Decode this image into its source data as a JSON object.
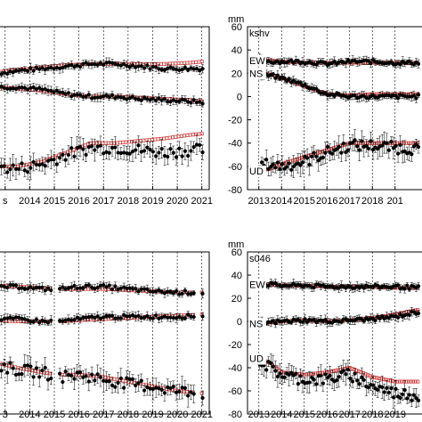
{
  "colors": {
    "observed": "#000000",
    "model": "#d23c3c",
    "axis": "#000000"
  },
  "chart_data": [
    {
      "type": "scatter",
      "panel": "top-left",
      "title": "",
      "xlabel": "",
      "ylabel": "",
      "unit": "",
      "station": "",
      "xlim": [
        2012.5,
        2021.3
      ],
      "ylim": [
        -80,
        60
      ],
      "x_ticks": [
        "2013",
        "2014",
        "2015",
        "2016",
        "2017",
        "2018",
        "2019",
        "2020",
        "2021"
      ],
      "x_tick_labels_shown": [
        "s",
        "2014",
        "2015",
        "2016",
        "2017",
        "2018",
        "2019",
        "2020",
        "2021"
      ],
      "y_ticks": [],
      "grid": "vertical dashed at each year",
      "components": [
        {
          "label": "",
          "observed": {
            "x": [
              2012.7,
              2013.5,
              2014.5,
              2015.5,
              2016.5,
              2017.5,
              2018.5,
              2019.5,
              2020.5,
              2021.0
            ],
            "y": [
              20,
              22,
              24,
              26,
              28,
              28,
              26,
              24,
              24,
              24
            ]
          },
          "model": {
            "x": [
              2012.7,
              2013.5,
              2014.5,
              2015.5,
              2016.5,
              2017.5,
              2018.5,
              2019.5,
              2020.5,
              2021.0
            ],
            "y": [
              21,
              23,
              25,
              27,
              28,
              28,
              28,
              28,
              29,
              30
            ]
          }
        },
        {
          "label": "",
          "observed": {
            "x": [
              2012.7,
              2013.5,
              2014.5,
              2015.5,
              2016.5,
              2017.5,
              2018.5,
              2019.5,
              2020.5,
              2021.0
            ],
            "y": [
              8,
              8,
              6,
              2,
              0,
              0,
              -2,
              -3,
              -4,
              -5
            ]
          },
          "model": {
            "x": [
              2012.7,
              2013.5,
              2014.5,
              2015.5,
              2016.5,
              2017.5,
              2018.5,
              2019.5,
              2020.5,
              2021.0
            ],
            "y": [
              8,
              7,
              5,
              2,
              0,
              0,
              -1,
              -2,
              -3,
              -4
            ]
          }
        },
        {
          "label": "",
          "observed": {
            "x": [
              2012.7,
              2013.5,
              2014.5,
              2015.5,
              2016.5,
              2017.5,
              2018.5,
              2019.5,
              2020.5,
              2021.0
            ],
            "y": [
              -60,
              -62,
              -58,
              -50,
              -44,
              -44,
              -46,
              -48,
              -46,
              -46
            ]
          },
          "model": {
            "x": [
              2012.7,
              2013.5,
              2014.5,
              2015.5,
              2016.5,
              2017.5,
              2018.5,
              2019.5,
              2020.5,
              2021.0
            ],
            "y": [
              -60,
              -60,
              -56,
              -48,
              -40,
              -40,
              -38,
              -36,
              -33,
              -32
            ]
          }
        }
      ]
    },
    {
      "type": "scatter",
      "panel": "top-right",
      "title": "",
      "xlabel": "",
      "ylabel": "",
      "unit": "mm",
      "station": "kshv",
      "xlim": [
        2012.5,
        2020.5
      ],
      "ylim": [
        -80,
        60
      ],
      "x_ticks": [
        "2013",
        "2014",
        "2015",
        "2016",
        "2017",
        "2018",
        "2019"
      ],
      "x_tick_labels_shown": [
        "2013",
        "2014",
        "2015",
        "2016",
        "2017",
        "2018",
        "201"
      ],
      "y_ticks": [
        60,
        40,
        20,
        0,
        -20,
        -40,
        -60,
        -80
      ],
      "grid": "vertical dashed at each year",
      "components": [
        {
          "label": "EW",
          "observed": {
            "x": [
              2013.0,
              2013.5,
              2014.0,
              2015.0,
              2016.0,
              2017.0,
              2018.0,
              2019.0,
              2020.0
            ],
            "y": [
              32,
              30,
              30,
              30,
              28,
              30,
              30,
              29,
              29
            ]
          },
          "model": {
            "x": [
              2013.0,
              2013.5,
              2014.0,
              2015.0,
              2016.0,
              2017.0,
              2018.0,
              2019.0,
              2020.0
            ],
            "y": [
              31,
              31,
              30,
              29,
              29,
              29,
              29,
              29,
              29
            ]
          }
        },
        {
          "label": "NS",
          "observed": {
            "x": [
              2013.0,
              2013.5,
              2014.0,
              2015.0,
              2016.0,
              2017.0,
              2018.0,
              2019.0,
              2020.0
            ],
            "y": [
              18,
              18,
              16,
              10,
              2,
              0,
              0,
              0,
              0
            ]
          },
          "model": {
            "x": [
              2013.0,
              2013.5,
              2014.0,
              2015.0,
              2016.0,
              2017.0,
              2018.0,
              2019.0,
              2020.0
            ],
            "y": [
              20,
              19,
              16,
              9,
              2,
              1,
              2,
              2,
              2
            ]
          }
        },
        {
          "label": "UD",
          "observed": {
            "x": [
              2013.0,
              2013.5,
              2014.0,
              2015.0,
              2016.0,
              2017.0,
              2018.0,
              2019.0,
              2020.0
            ],
            "y": [
              -60,
              -58,
              -60,
              -56,
              -48,
              -42,
              -42,
              -44,
              -45
            ]
          },
          "model": {
            "x": [
              2013.0,
              2013.5,
              2014.0,
              2015.0,
              2016.0,
              2017.0,
              2018.0,
              2019.0,
              2020.0
            ],
            "y": [
              -64,
              -62,
              -58,
              -52,
              -46,
              -40,
              -40,
              -40,
              -40
            ]
          }
        }
      ]
    },
    {
      "type": "scatter",
      "panel": "bottom-left",
      "title": "",
      "xlabel": "",
      "ylabel": "",
      "unit": "",
      "station": "",
      "xlim": [
        2012.5,
        2021.3
      ],
      "ylim": [
        -80,
        60
      ],
      "x_ticks": [
        "2013",
        "2014",
        "2015",
        "2016",
        "2017",
        "2018",
        "2019",
        "2020",
        "2021"
      ],
      "x_tick_labels_shown": [
        "3",
        "2014",
        "2015",
        "2016",
        "2017",
        "2018",
        "2019",
        "2020",
        "2021"
      ],
      "y_ticks": [],
      "grid": "vertical dashed at each year",
      "components": [
        {
          "label": "",
          "observed": {
            "x": [
              2012.7,
              2013.5,
              2014.5,
              2015.2,
              2016.0,
              2017.0,
              2018.0,
              2019.0,
              2020.0,
              2021.0
            ],
            "y": [
              30,
              30,
              28,
              28,
              30,
              30,
              28,
              26,
              25,
              25
            ]
          },
          "model": {
            "x": [
              2012.7,
              2013.5,
              2014.5,
              2015.2,
              2016.0,
              2017.0,
              2018.0,
              2019.0,
              2020.0,
              2021.0
            ],
            "y": [
              31,
              30,
              29,
              28,
              28,
              28,
              27,
              26,
              25,
              25
            ]
          }
        },
        {
          "label": "",
          "observed": {
            "x": [
              2012.7,
              2013.5,
              2014.5,
              2015.2,
              2016.0,
              2017.0,
              2018.0,
              2019.0,
              2020.0,
              2021.0
            ],
            "y": [
              2,
              2,
              0,
              0,
              2,
              4,
              4,
              4,
              4,
              5
            ]
          },
          "model": {
            "x": [
              2012.7,
              2013.5,
              2014.5,
              2015.2,
              2016.0,
              2017.0,
              2018.0,
              2019.0,
              2020.0,
              2021.0
            ],
            "y": [
              1,
              0,
              0,
              0,
              1,
              2,
              3,
              4,
              5,
              6
            ]
          }
        },
        {
          "label": "",
          "observed": {
            "x": [
              2012.7,
              2013.5,
              2014.5,
              2015.2,
              2016.0,
              2017.0,
              2018.0,
              2019.0,
              2020.0,
              2021.0
            ],
            "y": [
              -38,
              -42,
              -44,
              -48,
              -46,
              -50,
              -54,
              -56,
              -60,
              -62
            ]
          },
          "model": {
            "x": [
              2012.7,
              2013.5,
              2014.5,
              2015.2,
              2016.0,
              2017.0,
              2018.0,
              2019.0,
              2020.0,
              2021.0
            ],
            "y": [
              -36,
              -40,
              -44,
              -46,
              -46,
              -48,
              -52,
              -56,
              -60,
              -62
            ]
          }
        }
      ]
    },
    {
      "type": "scatter",
      "panel": "bottom-right",
      "title": "",
      "xlabel": "",
      "ylabel": "",
      "unit": "mm",
      "station": "s046",
      "xlim": [
        2012.5,
        2020.5
      ],
      "ylim": [
        -80,
        60
      ],
      "x_ticks": [
        "2013",
        "2014",
        "2015",
        "2016",
        "2017",
        "2018",
        "2019"
      ],
      "x_tick_labels_shown": [
        "2013",
        "2014",
        "2015",
        "2016",
        "2017",
        "2018",
        "2019"
      ],
      "y_ticks": [
        60,
        40,
        20,
        0,
        -20,
        -40,
        -60,
        -80
      ],
      "grid": "vertical dashed at each year",
      "components": [
        {
          "label": "EW",
          "observed": {
            "x": [
              2013.0,
              2013.5,
              2014.0,
              2015.0,
              2016.0,
              2017.0,
              2018.0,
              2019.0,
              2020.0
            ],
            "y": [
              32,
              32,
              31,
              31,
              30,
              30,
              30,
              30,
              29
            ]
          },
          "model": {
            "x": [
              2013.0,
              2013.5,
              2014.0,
              2015.0,
              2016.0,
              2017.0,
              2018.0,
              2019.0,
              2020.0
            ],
            "y": [
              32,
              32,
              31,
              31,
              30,
              30,
              30,
              29,
              29
            ]
          }
        },
        {
          "label": "NS",
          "observed": {
            "x": [
              2013.0,
              2013.5,
              2014.0,
              2015.0,
              2016.0,
              2017.0,
              2018.0,
              2019.0,
              2020.0
            ],
            "y": [
              -2,
              -1,
              0,
              1,
              0,
              1,
              2,
              4,
              8
            ]
          },
          "model": {
            "x": [
              2013.0,
              2013.5,
              2014.0,
              2015.0,
              2016.0,
              2017.0,
              2018.0,
              2019.0,
              2020.0
            ],
            "y": [
              -2,
              -1,
              0,
              1,
              0,
              1,
              3,
              6,
              10
            ]
          }
        },
        {
          "label": "UD",
          "observed": {
            "x": [
              2013.0,
              2013.5,
              2014.0,
              2015.0,
              2016.0,
              2017.0,
              2018.0,
              2019.0,
              2020.0
            ],
            "y": [
              -34,
              -40,
              -46,
              -50,
              -50,
              -46,
              -56,
              -62,
              -64
            ]
          },
          "model": {
            "x": [
              2013.0,
              2013.5,
              2014.0,
              2015.0,
              2016.0,
              2017.0,
              2018.0,
              2019.0,
              2020.0
            ],
            "y": [
              -32,
              -36,
              -44,
              -46,
              -44,
              -40,
              -48,
              -52,
              -52
            ]
          }
        }
      ]
    }
  ]
}
